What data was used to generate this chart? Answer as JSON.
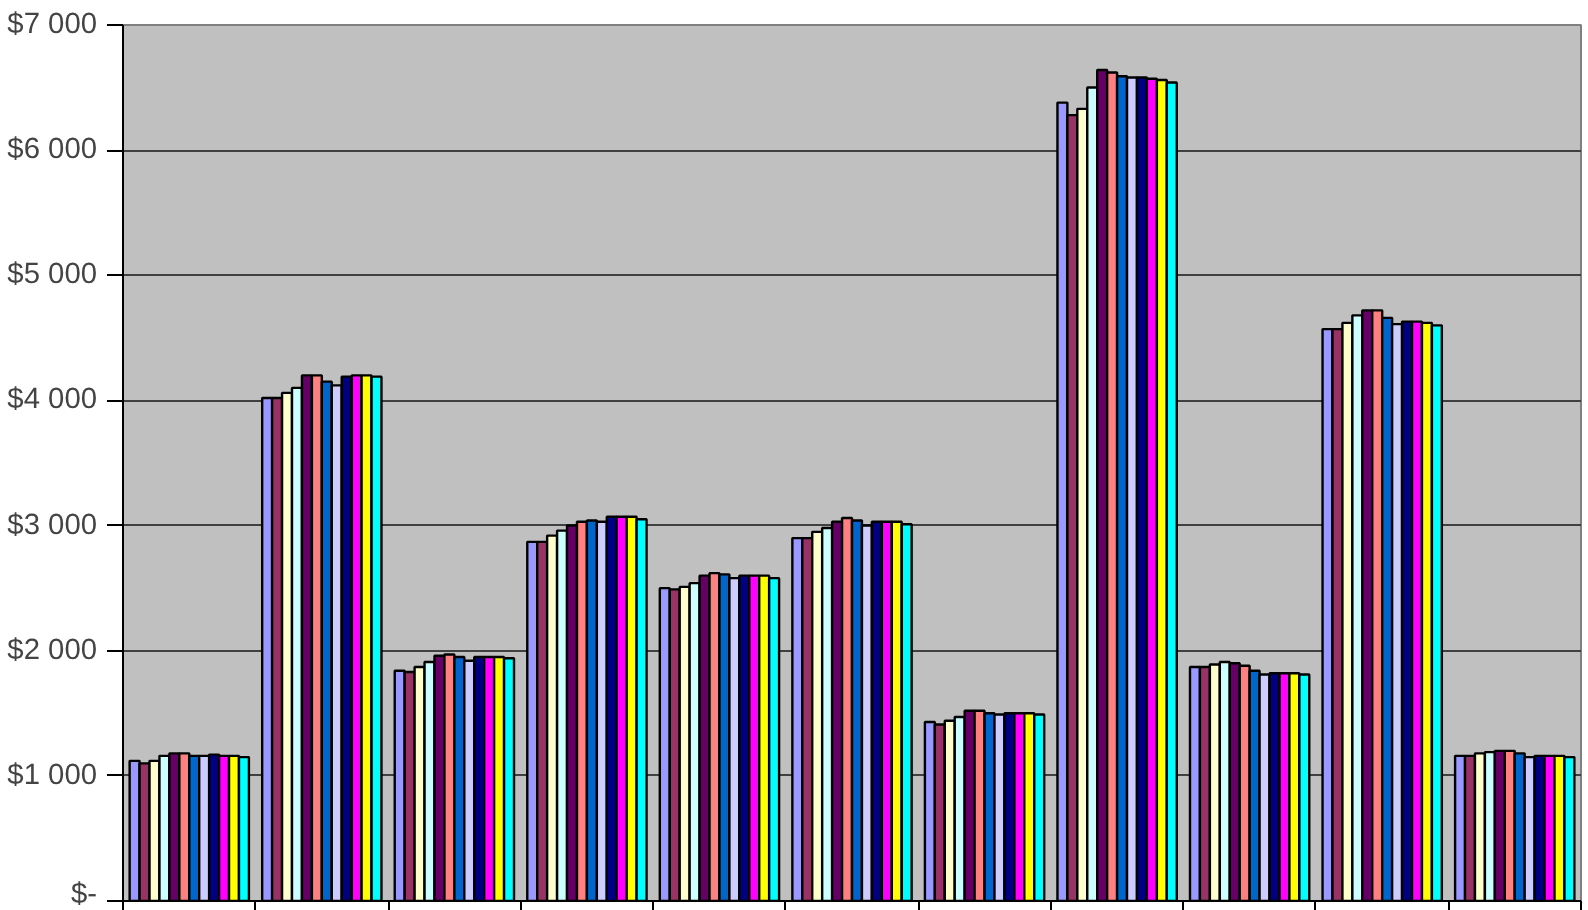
{
  "chart_data": {
    "type": "bar",
    "categories": [
      null,
      null,
      null,
      null,
      null,
      null,
      null,
      null,
      null,
      null,
      null
    ],
    "ylim": [
      0,
      7000
    ],
    "yticks": [
      {
        "value": 0,
        "label": "$-"
      },
      {
        "value": 1000,
        "label": "$1 000"
      },
      {
        "value": 2000,
        "label": "$2 000"
      },
      {
        "value": 3000,
        "label": "$3 000"
      },
      {
        "value": 4000,
        "label": "$4 000"
      },
      {
        "value": 5000,
        "label": "$5 000"
      },
      {
        "value": 6000,
        "label": "$6 000"
      },
      {
        "value": 7000,
        "label": "$7 000"
      }
    ],
    "grid": "y",
    "series": [
      {
        "color": "#9999ff",
        "values": [
          1120,
          4020,
          1840,
          2870,
          2500,
          2900,
          1430,
          6380,
          1870,
          4570,
          1160
        ]
      },
      {
        "color": "#993366",
        "values": [
          1100,
          4020,
          1830,
          2870,
          2490,
          2900,
          1410,
          6280,
          1870,
          4570,
          1160
        ]
      },
      {
        "color": "#ffffcc",
        "values": [
          1120,
          4060,
          1870,
          2920,
          2510,
          2950,
          1440,
          6330,
          1890,
          4620,
          1180
        ]
      },
      {
        "color": "#ccffff",
        "values": [
          1160,
          4100,
          1910,
          2960,
          2540,
          2980,
          1470,
          6500,
          1910,
          4680,
          1190
        ]
      },
      {
        "color": "#660066",
        "values": [
          1180,
          4200,
          1960,
          3000,
          2600,
          3030,
          1520,
          6640,
          1900,
          4720,
          1200
        ]
      },
      {
        "color": "#ff8080",
        "values": [
          1180,
          4200,
          1970,
          3030,
          2620,
          3060,
          1520,
          6620,
          1880,
          4720,
          1200
        ]
      },
      {
        "color": "#0066cc",
        "values": [
          1160,
          4150,
          1950,
          3040,
          2610,
          3040,
          1500,
          6590,
          1840,
          4660,
          1180
        ]
      },
      {
        "color": "#ccccff",
        "values": [
          1160,
          4120,
          1920,
          3030,
          2580,
          3000,
          1490,
          6580,
          1810,
          4610,
          1150
        ]
      },
      {
        "color": "#000080",
        "values": [
          1170,
          4190,
          1950,
          3070,
          2600,
          3030,
          1500,
          6580,
          1820,
          4630,
          1160
        ]
      },
      {
        "color": "#ff00ff",
        "values": [
          1160,
          4200,
          1950,
          3070,
          2600,
          3030,
          1500,
          6570,
          1820,
          4630,
          1160
        ]
      },
      {
        "color": "#ffff00",
        "values": [
          1160,
          4200,
          1950,
          3070,
          2600,
          3030,
          1500,
          6560,
          1820,
          4620,
          1160
        ]
      },
      {
        "color": "#00ffff",
        "values": [
          1150,
          4190,
          1940,
          3050,
          2580,
          3010,
          1490,
          6540,
          1810,
          4600,
          1150
        ]
      }
    ]
  }
}
